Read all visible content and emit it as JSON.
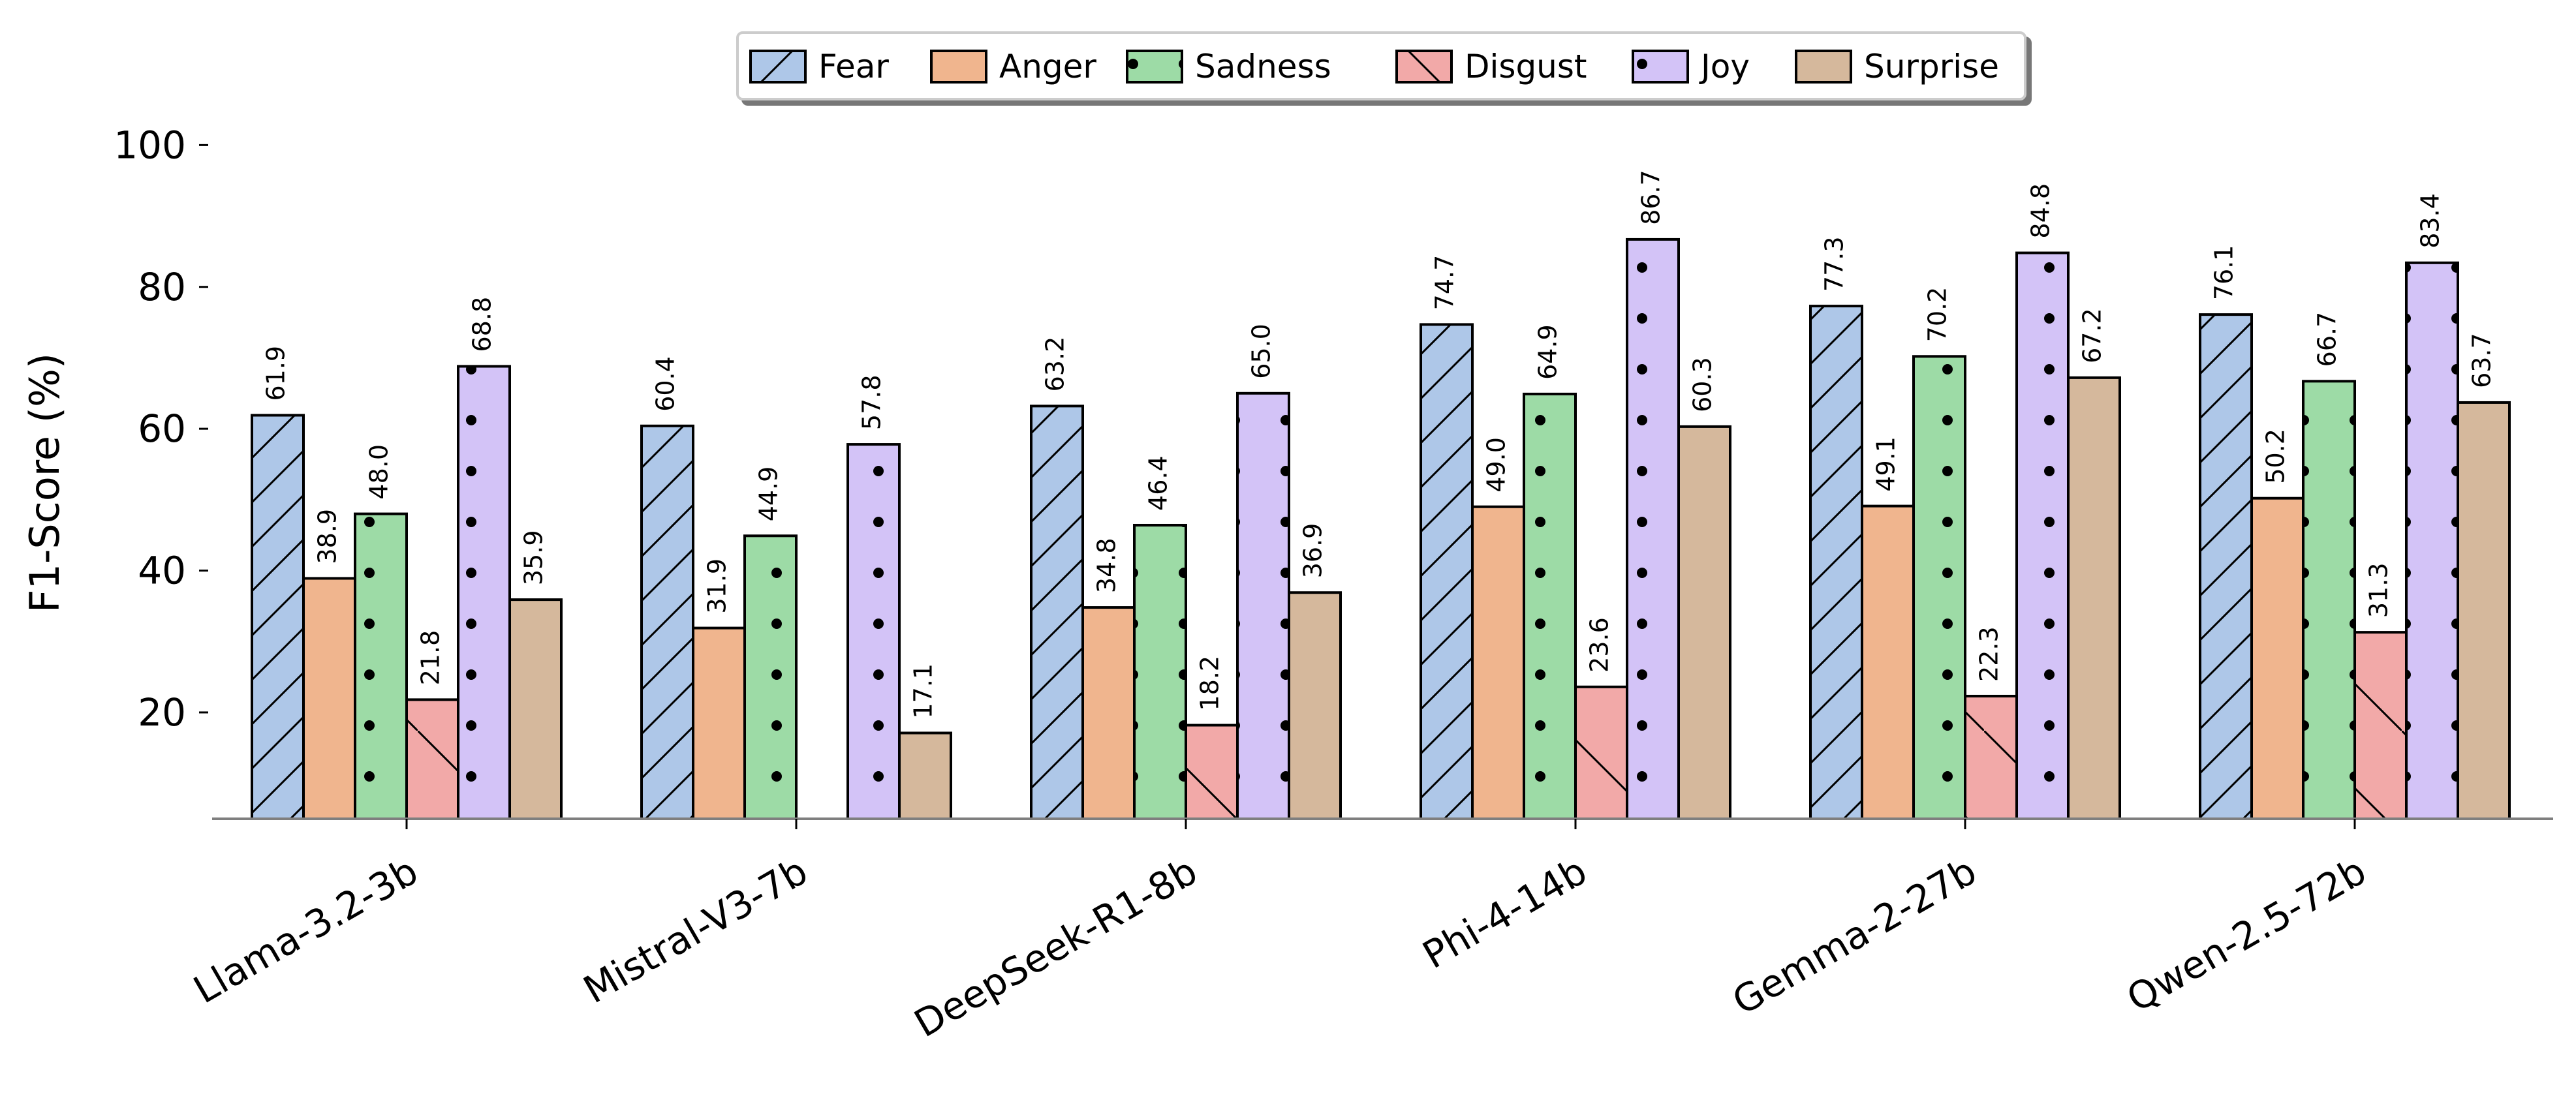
{
  "chart_data": {
    "type": "bar",
    "title": "",
    "xlabel": "",
    "ylabel": "F1-Score (%)",
    "ylim": [
      5,
      100
    ],
    "yticks": [
      20,
      40,
      60,
      80,
      100
    ],
    "grid": false,
    "legend_position": "top-center",
    "categories": [
      "Llama-3.2-3b",
      "Mistral-V3-7b",
      "DeepSeek-R1-8b",
      "Phi-4-14b",
      "Gemma-2-27b",
      "Qwen-2.5-72b"
    ],
    "series": [
      {
        "name": "Fear",
        "color": "#aec7e8",
        "hatch": "diagonal",
        "values": [
          61.9,
          60.4,
          63.2,
          74.7,
          77.3,
          76.1
        ]
      },
      {
        "name": "Anger",
        "color": "#f0b58e",
        "hatch": "none",
        "values": [
          38.9,
          31.9,
          34.8,
          49.0,
          49.1,
          50.2
        ]
      },
      {
        "name": "Sadness",
        "color": "#9ddba6",
        "hatch": "dots",
        "values": [
          48.0,
          44.9,
          46.4,
          64.9,
          70.2,
          66.7
        ]
      },
      {
        "name": "Disgust",
        "color": "#f2a9a8",
        "hatch": "backslash-sparse",
        "values": [
          21.8,
          null,
          18.2,
          23.6,
          22.3,
          31.3
        ]
      },
      {
        "name": "Joy",
        "color": "#d3c3f7",
        "hatch": "dots",
        "values": [
          68.8,
          57.8,
          65.0,
          86.7,
          84.8,
          83.4
        ]
      },
      {
        "name": "Surprise",
        "color": "#d5b89c",
        "hatch": "none",
        "values": [
          35.9,
          17.1,
          36.9,
          60.3,
          67.2,
          63.7
        ]
      }
    ]
  }
}
